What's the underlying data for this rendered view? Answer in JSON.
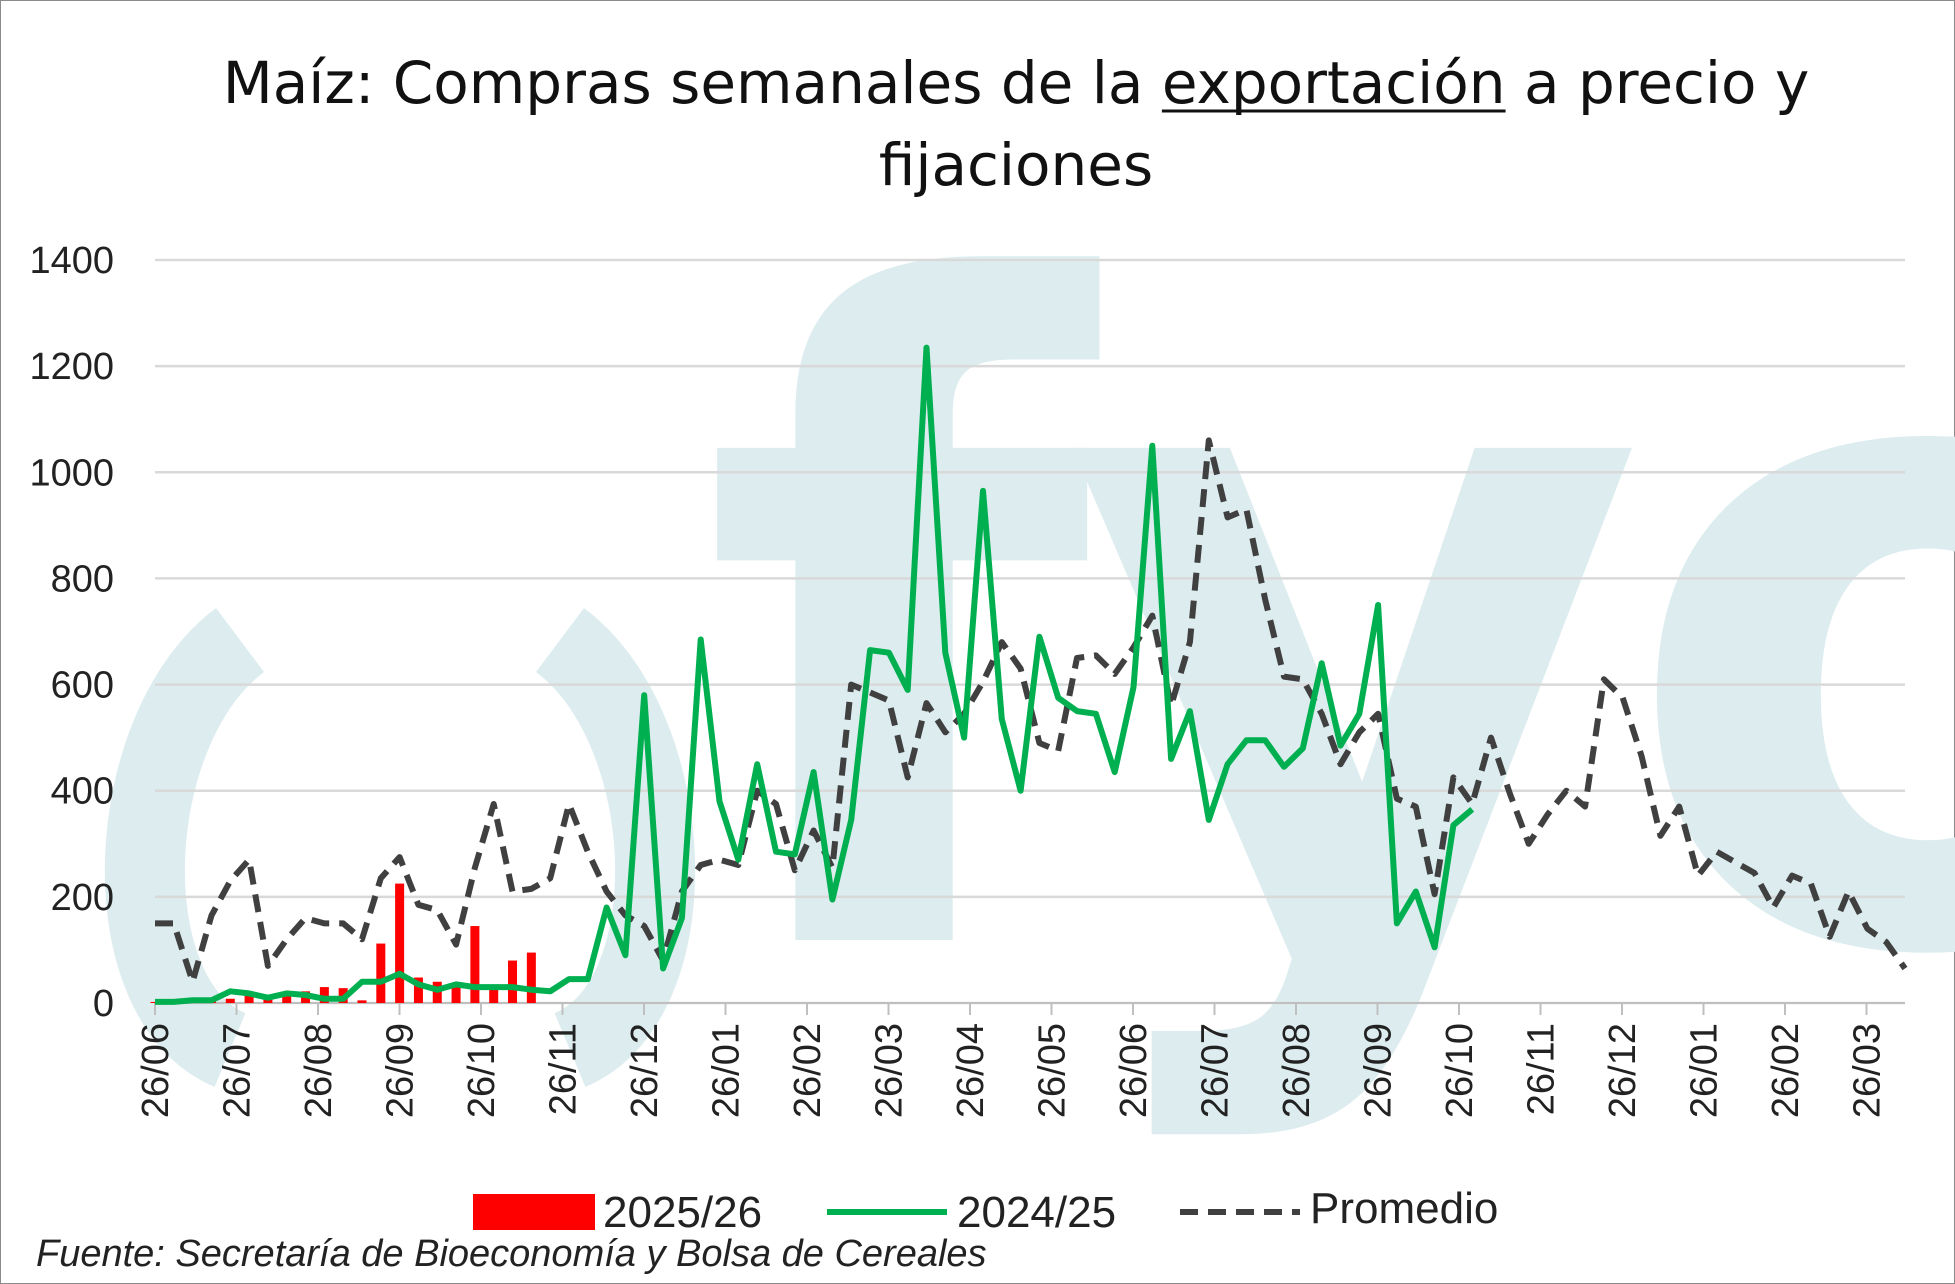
{
  "chart_data": {
    "type": "bar+line",
    "title_parts": [
      "Maíz: Compras semanales de la ",
      "exportación",
      " a precio y",
      "fijaciones"
    ],
    "title_underlined": "exportación",
    "source": "Fuente: Secretaría de Bioeconomía y Bolsa de Cereales",
    "watermark": "fyo",
    "ylim": [
      0,
      1400
    ],
    "yticks": [
      0,
      200,
      400,
      600,
      800,
      1000,
      1200,
      1400
    ],
    "grid": true,
    "legend_position": "bottom",
    "x_tick_labels": [
      "26/06",
      "26/07",
      "26/08",
      "26/09",
      "26/10",
      "26/11",
      "26/12",
      "26/01",
      "26/02",
      "26/03",
      "26/04",
      "26/05",
      "26/06",
      "26/07",
      "26/08",
      "26/09",
      "26/10",
      "26/11",
      "26/12",
      "26/01",
      "26/02",
      "26/03"
    ],
    "x_weeks_total": 94,
    "colors": {
      "bars": "#ff0000",
      "line2425": "#00b050",
      "promedio": "#404040",
      "grid": "#d9d9d9",
      "watermark": "#dcecef"
    },
    "series": [
      {
        "name": "2025/26",
        "kind": "bar",
        "values": [
          2,
          2,
          5,
          5,
          8,
          15,
          15,
          20,
          22,
          30,
          28,
          5,
          112,
          225,
          48,
          40,
          30,
          145,
          30,
          80,
          95
        ]
      },
      {
        "name": "2024/25",
        "kind": "line",
        "values": [
          2,
          2,
          5,
          5,
          22,
          18,
          10,
          18,
          15,
          8,
          8,
          40,
          40,
          55,
          35,
          25,
          35,
          30,
          30,
          30,
          25,
          22,
          45,
          45,
          180,
          90,
          580,
          65,
          160,
          685,
          380,
          270,
          450,
          285,
          280,
          435,
          195,
          345,
          665,
          660,
          590,
          1235,
          660,
          500,
          965,
          535,
          400,
          690,
          575,
          550,
          545,
          435,
          595,
          1050,
          460,
          550,
          345,
          450,
          495,
          495,
          445,
          480,
          640,
          485,
          545,
          750,
          150,
          210,
          105,
          335,
          365
        ]
      },
      {
        "name": "Promedio",
        "kind": "line",
        "dash": true,
        "values": [
          150,
          150,
          40,
          165,
          230,
          270,
          70,
          120,
          160,
          150,
          150,
          120,
          235,
          275,
          185,
          175,
          110,
          255,
          375,
          210,
          215,
          235,
          375,
          285,
          210,
          165,
          145,
          80,
          210,
          260,
          270,
          260,
          400,
          375,
          250,
          325,
          255,
          600,
          585,
          570,
          425,
          565,
          510,
          545,
          605,
          680,
          630,
          490,
          475,
          650,
          655,
          620,
          670,
          730,
          560,
          680,
          1060,
          915,
          930,
          760,
          615,
          610,
          545,
          450,
          510,
          545,
          385,
          370,
          205,
          425,
          375,
          500,
          395,
          300,
          355,
          400,
          370,
          610,
          575,
          465,
          315,
          370,
          240,
          285,
          265,
          245,
          180,
          240,
          225,
          125,
          210,
          140,
          115,
          65
        ]
      }
    ]
  }
}
